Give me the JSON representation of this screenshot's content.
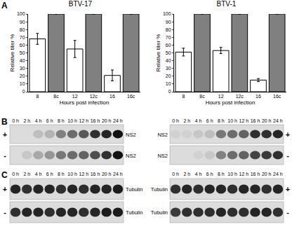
{
  "chart_data": [
    {
      "type": "bar",
      "title": "BTV-17",
      "x_label": "Hours post infection",
      "y_label": "Relative titer %",
      "categories": [
        "8",
        "8c",
        "12",
        "12c",
        "16",
        "16c"
      ],
      "values": [
        68,
        100,
        55,
        100,
        21,
        100
      ],
      "errors": [
        7,
        0,
        11,
        0,
        7,
        0
      ],
      "colors": [
        "#ffffff",
        "#808080",
        "#ffffff",
        "#808080",
        "#ffffff",
        "#808080"
      ],
      "ylim": [
        0,
        100
      ],
      "yticks": [
        0,
        10,
        20,
        30,
        40,
        50,
        60,
        70,
        80,
        90,
        100
      ],
      "grid": false
    },
    {
      "type": "bar",
      "title": "BTV-1",
      "x_label": "Hours post infection",
      "y_label": "Relative titer %",
      "categories": [
        "8",
        "8c",
        "12",
        "12c",
        "16",
        "16c"
      ],
      "values": [
        51,
        100,
        53,
        100,
        15,
        100
      ],
      "errors": [
        5,
        0,
        4,
        0,
        2,
        0
      ],
      "colors": [
        "#ffffff",
        "#808080",
        "#ffffff",
        "#808080",
        "#ffffff",
        "#808080"
      ],
      "ylim": [
        0,
        100
      ],
      "yticks": [
        0,
        10,
        20,
        30,
        40,
        50,
        60,
        70,
        80,
        90,
        100
      ],
      "grid": false
    }
  ],
  "chart_panel_label": "A",
  "blot_panels": [
    {
      "label": "B",
      "blots": [
        {
          "protein": "NS2",
          "lanes": [
            "0 h",
            "2 h",
            "4 h",
            "6 h",
            "8 h",
            "10 h",
            "12 h",
            "16 h",
            "20 h",
            "24 h"
          ],
          "rows": [
            {
              "sign": "+",
              "intensity": [
                0,
                0,
                0.15,
                0.2,
                0.45,
                0.55,
                0.65,
                0.85,
                0.9,
                1
              ]
            },
            {
              "sign": "-",
              "intensity": [
                0,
                0.1,
                0.25,
                0.35,
                0.5,
                0.55,
                0.6,
                0.7,
                0.85,
                1
              ]
            }
          ]
        },
        {
          "protein": "NS2",
          "lanes": [
            "0 h",
            "2 h",
            "4 h",
            "6 h",
            "8 h",
            "10 h",
            "12 h",
            "16 h",
            "20 h",
            "24 h"
          ],
          "rows": [
            {
              "sign": "+",
              "intensity": [
                0.05,
                0.05,
                0.1,
                0.15,
                0.5,
                0.55,
                0.6,
                0.85,
                0.85,
                0.9
              ]
            },
            {
              "sign": "-",
              "intensity": [
                0,
                0,
                0.05,
                0.1,
                0.45,
                0.55,
                0.6,
                0.75,
                0.8,
                0.85
              ]
            }
          ]
        }
      ]
    },
    {
      "label": "C",
      "blots": [
        {
          "protein": "Tubulin",
          "lanes": [
            "0 h",
            "2 h",
            "4 h",
            "6 h",
            "8 h",
            "10 h",
            "12 h",
            "16 h",
            "20 h",
            "24 h"
          ],
          "rows": [
            {
              "sign": "+",
              "intensity": [
                0.9,
                0.85,
                0.9,
                0.9,
                0.85,
                0.9,
                0.85,
                0.9,
                0.9,
                0.95
              ]
            },
            {
              "sign": "-",
              "intensity": [
                0.85,
                0.9,
                0.9,
                0.85,
                0.9,
                0.9,
                0.85,
                0.9,
                0.95,
                0.95
              ]
            }
          ]
        },
        {
          "protein": "Tubulin",
          "lanes": [
            "0 h",
            "2 h",
            "4 h",
            "6 h",
            "8 h",
            "10 h",
            "12 h",
            "16 h",
            "20 h",
            "24 h"
          ],
          "rows": [
            {
              "sign": "+",
              "intensity": [
                0.85,
                0.9,
                0.85,
                0.9,
                0.9,
                0.85,
                0.9,
                0.9,
                0.85,
                0.9
              ]
            },
            {
              "sign": "-",
              "intensity": [
                0.8,
                0.85,
                0.85,
                0.85,
                0.9,
                0.85,
                0.85,
                0.9,
                0.9,
                0.85
              ]
            }
          ]
        }
      ]
    }
  ]
}
